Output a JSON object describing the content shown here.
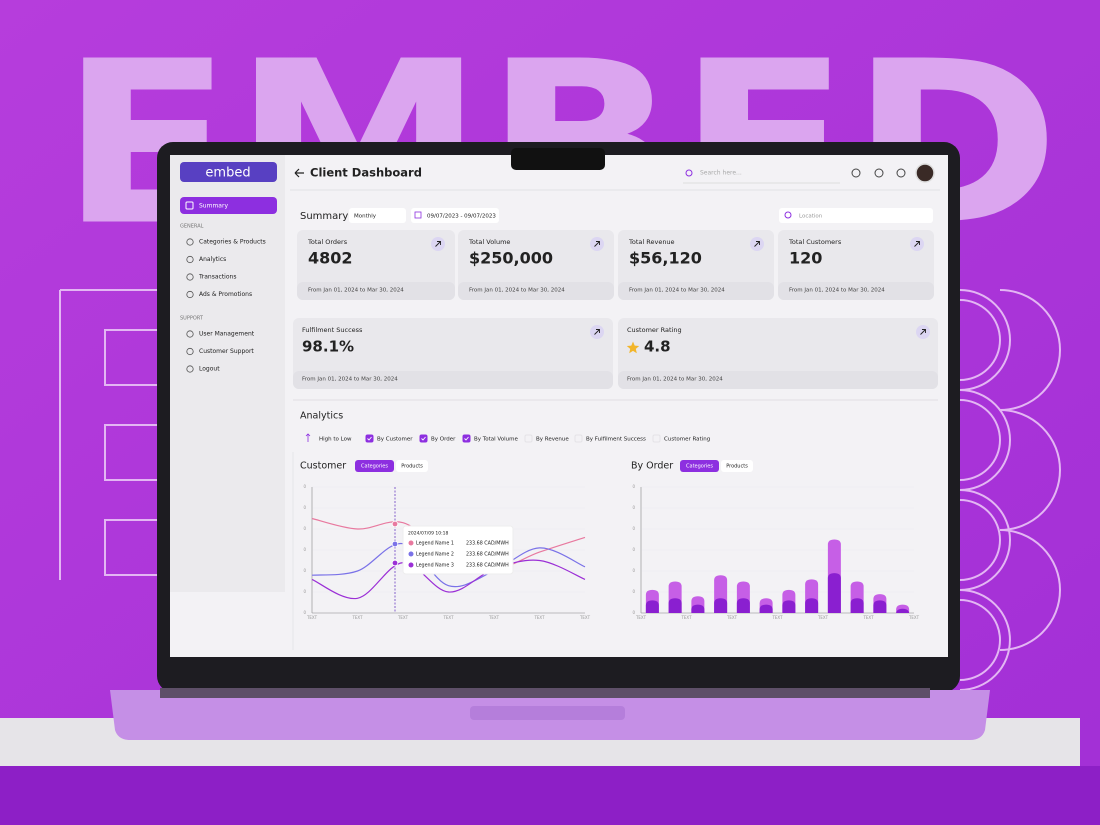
{
  "background_text": "EMBED",
  "sidebar": {
    "logo": "embed",
    "active": "Summary",
    "sections": [
      {
        "title": "GENERAL",
        "items": [
          "Categories & Products",
          "Analytics",
          "Transactions",
          "Ads & Promotions"
        ]
      },
      {
        "title": "SUPPORT",
        "items": [
          "User Management",
          "Customer Support",
          "Logout"
        ]
      }
    ]
  },
  "header": {
    "title": "Client Dashboard",
    "search": "Search here..."
  },
  "summary": {
    "title": "Summary",
    "period": "Monthly",
    "date_range": "09/07/2023 - 09/07/2023",
    "location": "Location",
    "cards": [
      {
        "label": "Total Orders",
        "value": 4802,
        "note": "From Jan 01, 2024 to Mar 30, 2024"
      },
      {
        "label": "Total Volume",
        "value": "$250,000",
        "note": "From Jan 01, 2024 to Mar 30, 2024"
      },
      {
        "label": "Total Revenue",
        "value": "$56,120",
        "note": "From Jan 01, 2024 to Mar 30, 2024"
      },
      {
        "label": "Total Customers",
        "value": 120,
        "note": "From Jan 01, 2024 to Mar 30, 2024"
      },
      {
        "label": "Fulfilment Success",
        "value": "98.1%",
        "note": "From Jan 01, 2024 to Mar 30, 2024"
      },
      {
        "label": "Customer Rating",
        "value": 4.8,
        "note": "From Jan 01, 2024 to Mar 30, 2024"
      }
    ]
  },
  "analytics": {
    "title": "Analytics",
    "sort": "High to Low",
    "filters": [
      {
        "label": "By Customer",
        "checked": true
      },
      {
        "label": "By Order",
        "checked": true
      },
      {
        "label": "By Total Volume",
        "checked": true
      },
      {
        "label": "By Revenue",
        "checked": false
      },
      {
        "label": "By Fulfilment Success",
        "checked": false
      },
      {
        "label": "Customer Rating",
        "checked": false
      }
    ],
    "customer_chart": {
      "type": "line",
      "title": "Customer",
      "tabs": [
        "Categories",
        "Products"
      ],
      "ylim": [
        0,
        6
      ],
      "y_tick_labels": [
        "0",
        "0",
        "0",
        "0",
        "0",
        "0",
        "0"
      ],
      "x_tick_labels": [
        "TEXT",
        "TEXT",
        "TEXT",
        "TEXT",
        "TEXT",
        "TEXT",
        "TEXT"
      ],
      "series": [
        {
          "color": "#e8799f",
          "values": [
            4.5,
            4.0,
            4.3,
            2.8,
            2.1,
            2.9,
            3.6
          ]
        },
        {
          "color": "#7a72e8",
          "values": [
            1.8,
            2.0,
            3.3,
            1.3,
            2.0,
            3.1,
            2.2
          ]
        },
        {
          "color": "#9b2fd6",
          "values": [
            1.6,
            0.7,
            2.4,
            1.0,
            2.1,
            2.5,
            1.6
          ]
        }
      ],
      "tooltip": {
        "time": "2024/07/09  10:18",
        "rows": [
          {
            "name": "Legend Name 1",
            "value": "233.68 CAD/MWH"
          },
          {
            "name": "Legend Name 2",
            "value": "233.68 CAD/MWH"
          },
          {
            "name": "Legend Name 3",
            "value": "233.68 CAD/MWH"
          }
        ]
      }
    },
    "order_chart": {
      "type": "bar",
      "title": "By Order",
      "tabs": [
        "Categories",
        "Products"
      ],
      "ylim": [
        0,
        6
      ],
      "y_tick_labels": [
        "0",
        "0",
        "0",
        "0",
        "0",
        "0",
        "0"
      ],
      "x_tick_labels": [
        "TEXT",
        "TEXT",
        "TEXT",
        "TEXT",
        "TEXT",
        "TEXT",
        "TEXT"
      ],
      "series": [
        {
          "color": "#c65fe6",
          "values": [
            1.1,
            1.5,
            0.8,
            1.8,
            1.5,
            0.7,
            1.1,
            1.6,
            3.5,
            1.5,
            0.9,
            0.4
          ]
        },
        {
          "color": "#8a1fd0",
          "values": [
            0.6,
            0.7,
            0.4,
            0.7,
            0.7,
            0.4,
            0.6,
            0.7,
            1.9,
            0.7,
            0.6,
            0.2
          ]
        }
      ]
    }
  }
}
